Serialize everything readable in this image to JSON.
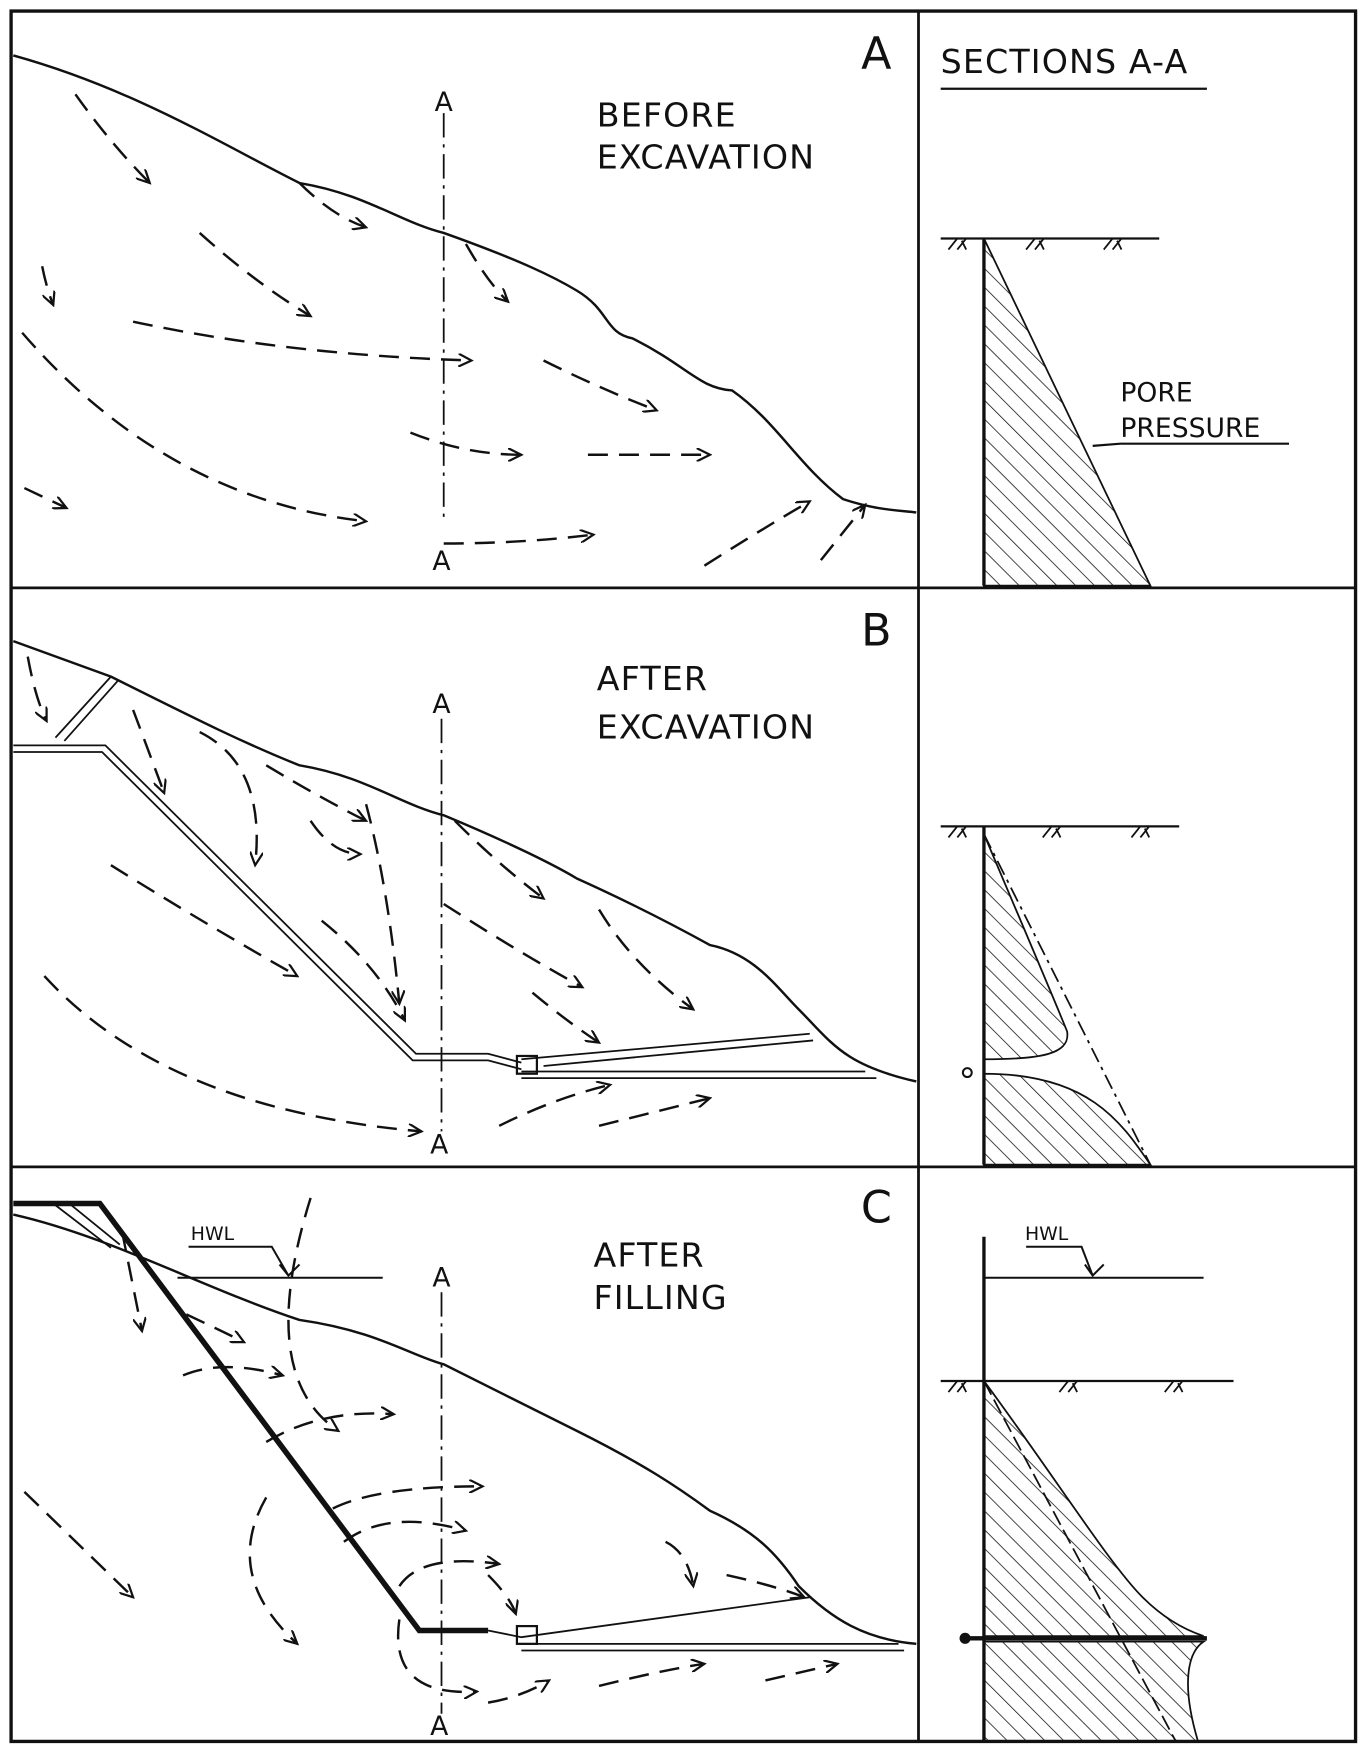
{
  "panels": [
    {
      "letter": "A",
      "caption": [
        "BEFORE",
        "EXCAVATION"
      ],
      "section_marks": [
        "A",
        "A"
      ]
    },
    {
      "letter": "B",
      "caption": [
        "AFTER",
        "EXCAVATION"
      ],
      "section_marks": [
        "A",
        "A"
      ]
    },
    {
      "letter": "C",
      "caption": [
        "AFTER",
        "FILLING"
      ],
      "section_marks": [
        "A",
        "A"
      ],
      "hwl": "HWL"
    }
  ],
  "sections": {
    "title": "SECTIONS A-A",
    "pore_pressure_label": [
      "PORE",
      "PRESSURE"
    ],
    "hwl": "HWL"
  }
}
